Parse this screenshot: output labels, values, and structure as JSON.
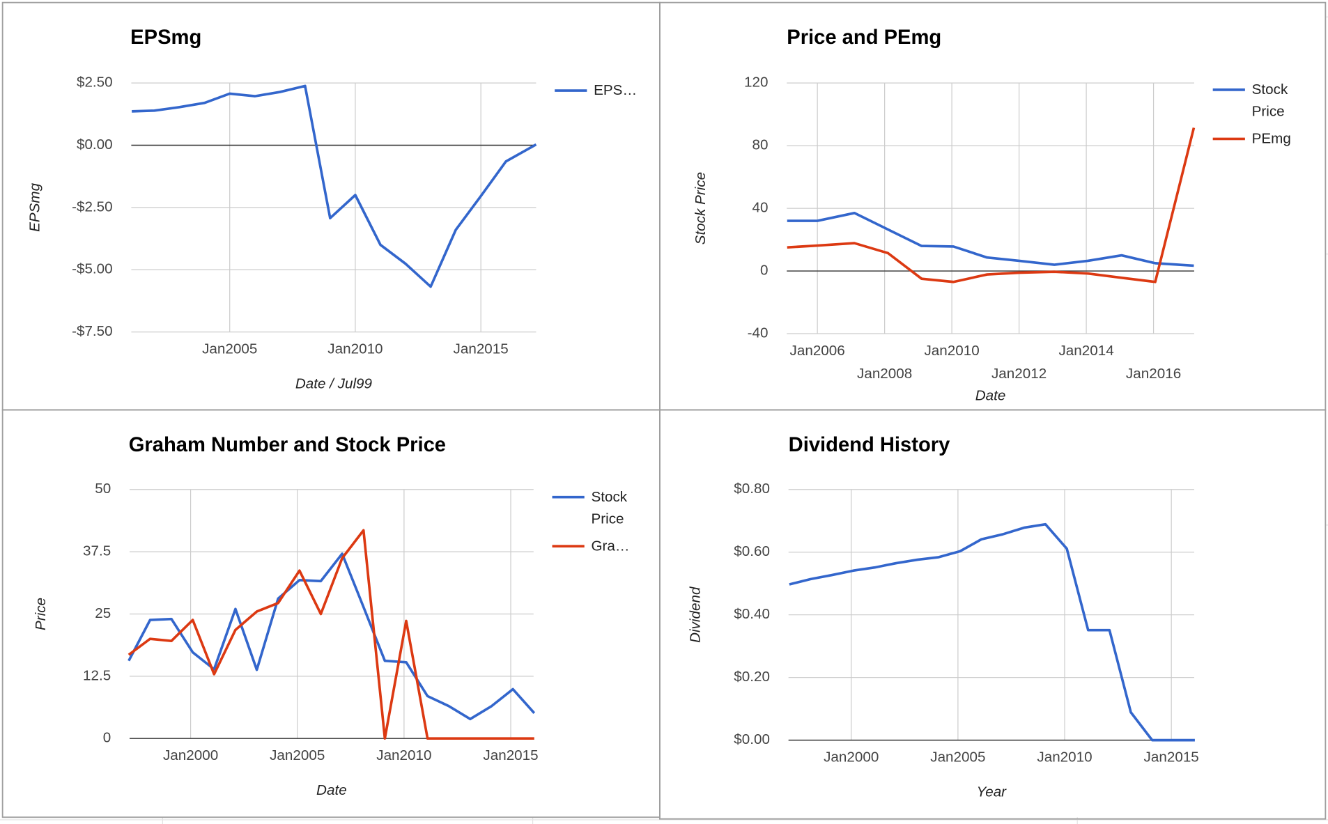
{
  "chart_data": [
    {
      "type": "line",
      "title": "EPSmg",
      "y_label": "EPSmg",
      "x_label": "Date / Jul99",
      "x": [
        2001.1,
        2002.0,
        2003.0,
        2004.0,
        2005.0,
        2006.0,
        2007.0,
        2008.0,
        2009.0,
        2010.0,
        2011.0,
        2012.0,
        2013.0,
        2014.0,
        2015.0,
        2016.0,
        2017.2
      ],
      "series": [
        {
          "name": "EPS…",
          "color": "#3366cc",
          "values": [
            1.36,
            1.39,
            1.53,
            1.7,
            2.07,
            1.97,
            2.14,
            2.38,
            -2.93,
            -2.0,
            -4.0,
            -4.76,
            -5.68,
            -3.4,
            -2.04,
            -0.65,
            0.03
          ]
        }
      ],
      "xlim": [
        2001.08,
        2017.2
      ],
      "xticks": [
        {
          "value": 2005,
          "label": "Jan2005"
        },
        {
          "value": 2010,
          "label": "Jan2010"
        },
        {
          "value": 2015,
          "label": "Jan2015"
        }
      ],
      "ylim": [
        -7.5,
        2.5
      ],
      "yticks": [
        {
          "value": 2.5,
          "label": "$2.50"
        },
        {
          "value": 0,
          "label": "$0.00"
        },
        {
          "value": -2.5,
          "label": "-$2.50"
        },
        {
          "value": -5,
          "label": "-$5.00"
        },
        {
          "value": -7.5,
          "label": "-$7.50"
        }
      ],
      "grid": true,
      "legend": "right"
    },
    {
      "type": "line",
      "title": "Price and PEmg",
      "y_label": "Stock Price",
      "x_label": "Date",
      "x": [
        2005.1,
        2006.0,
        2007.1,
        2008.1,
        2009.1,
        2010.05,
        2011.05,
        2012.0,
        2013.05,
        2014.05,
        2015.05,
        2016.05,
        2017.2
      ],
      "series": [
        {
          "name": "Stock Price",
          "color": "#3366cc",
          "values": [
            32,
            32,
            37,
            26.5,
            16,
            15.6,
            8.6,
            6.5,
            4,
            6.5,
            10,
            5,
            3.4
          ]
        },
        {
          "name": "PEmg",
          "color": "#dc3912",
          "values": [
            15.1,
            16.2,
            17.8,
            11.4,
            -4.9,
            -7,
            -2.2,
            -1.1,
            -0.5,
            -1.6,
            -4.3,
            -7,
            91.4
          ]
        }
      ],
      "xlim": [
        2005.09,
        2017.21
      ],
      "xticks": [
        {
          "value": 2006,
          "label": "Jan2006"
        },
        {
          "value": 2008,
          "label": "Jan2008"
        },
        {
          "value": 2010,
          "label": "Jan2010"
        },
        {
          "value": 2012,
          "label": "Jan2012"
        },
        {
          "value": 2014,
          "label": "Jan2014"
        },
        {
          "value": 2016,
          "label": "Jan2016"
        }
      ],
      "ylim": [
        -40,
        120
      ],
      "yticks": [
        120,
        80,
        40,
        0,
        -40
      ],
      "grid": true,
      "legend": "right"
    },
    {
      "type": "line",
      "title": "Graham Number and Stock Price",
      "y_label": "Price",
      "x_label": "Date",
      "x": [
        1997.1,
        1998.1,
        1999.1,
        2000.1,
        2001.1,
        2002.1,
        2003.1,
        2004.1,
        2005.1,
        2006.1,
        2007.1,
        2008.1,
        2009.1,
        2010.1,
        2011.1,
        2012.1,
        2013.1,
        2014.1,
        2015.1,
        2016.1
      ],
      "series": [
        {
          "name": "Stock Price",
          "color": "#3366cc",
          "values": [
            15.6,
            23.8,
            24,
            17.3,
            13.9,
            26,
            13.8,
            28.1,
            31.8,
            31.6,
            37.1,
            26.4,
            15.6,
            15.3,
            8.5,
            6.5,
            3.9,
            6.5,
            9.9,
            5.1
          ]
        },
        {
          "name": "Gra…",
          "color": "#dc3912",
          "values": [
            16.8,
            20,
            19.6,
            23.8,
            12.9,
            21.8,
            25.5,
            27.2,
            33.7,
            25,
            36.2,
            41.8,
            0,
            23.6,
            0,
            0,
            0,
            0,
            0,
            0
          ]
        }
      ],
      "xlim": [
        1997.14,
        2016.07
      ],
      "xticks": [
        {
          "value": 2000,
          "label": "Jan2000"
        },
        {
          "value": 2005,
          "label": "Jan2005"
        },
        {
          "value": 2010,
          "label": "Jan2010"
        },
        {
          "value": 2015,
          "label": "Jan2015"
        }
      ],
      "ylim": [
        0,
        50
      ],
      "yticks": [
        50,
        37.5,
        25,
        12.5,
        0
      ],
      "grid": true,
      "legend": "right"
    },
    {
      "type": "line",
      "title": "Dividend History",
      "y_label": "Dividend",
      "x_label": "Year",
      "x": [
        1997.1,
        1998.1,
        1999.1,
        2000.1,
        2001.1,
        2002.1,
        2003.1,
        2004.1,
        2005.1,
        2006.1,
        2007.1,
        2008.1,
        2009.1,
        2010.1,
        2011.1,
        2012.1,
        2013.1,
        2014.1,
        2015.1,
        2016.1
      ],
      "series": [
        {
          "name": "Dividend",
          "color": "#3366cc",
          "values": [
            0.497,
            0.514,
            0.527,
            0.541,
            0.551,
            0.565,
            0.576,
            0.584,
            0.603,
            0.641,
            0.657,
            0.678,
            0.689,
            0.611,
            0.351,
            0.351,
            0.089,
            0,
            0,
            0
          ]
        }
      ],
      "xlim": [
        1997.06,
        2016.07
      ],
      "xticks": [
        {
          "value": 2000,
          "label": "Jan2000"
        },
        {
          "value": 2005,
          "label": "Jan2005"
        },
        {
          "value": 2010,
          "label": "Jan2010"
        },
        {
          "value": 2015,
          "label": "Jan2015"
        }
      ],
      "ylim": [
        0,
        0.8
      ],
      "yticks": [
        {
          "value": 0.8,
          "label": "$0.80"
        },
        {
          "value": 0.6,
          "label": "$0.60"
        },
        {
          "value": 0.4,
          "label": "$0.40"
        },
        {
          "value": 0.2,
          "label": "$0.20"
        },
        {
          "value": 0,
          "label": "$0.00"
        }
      ],
      "grid": true,
      "legend": "none"
    }
  ]
}
